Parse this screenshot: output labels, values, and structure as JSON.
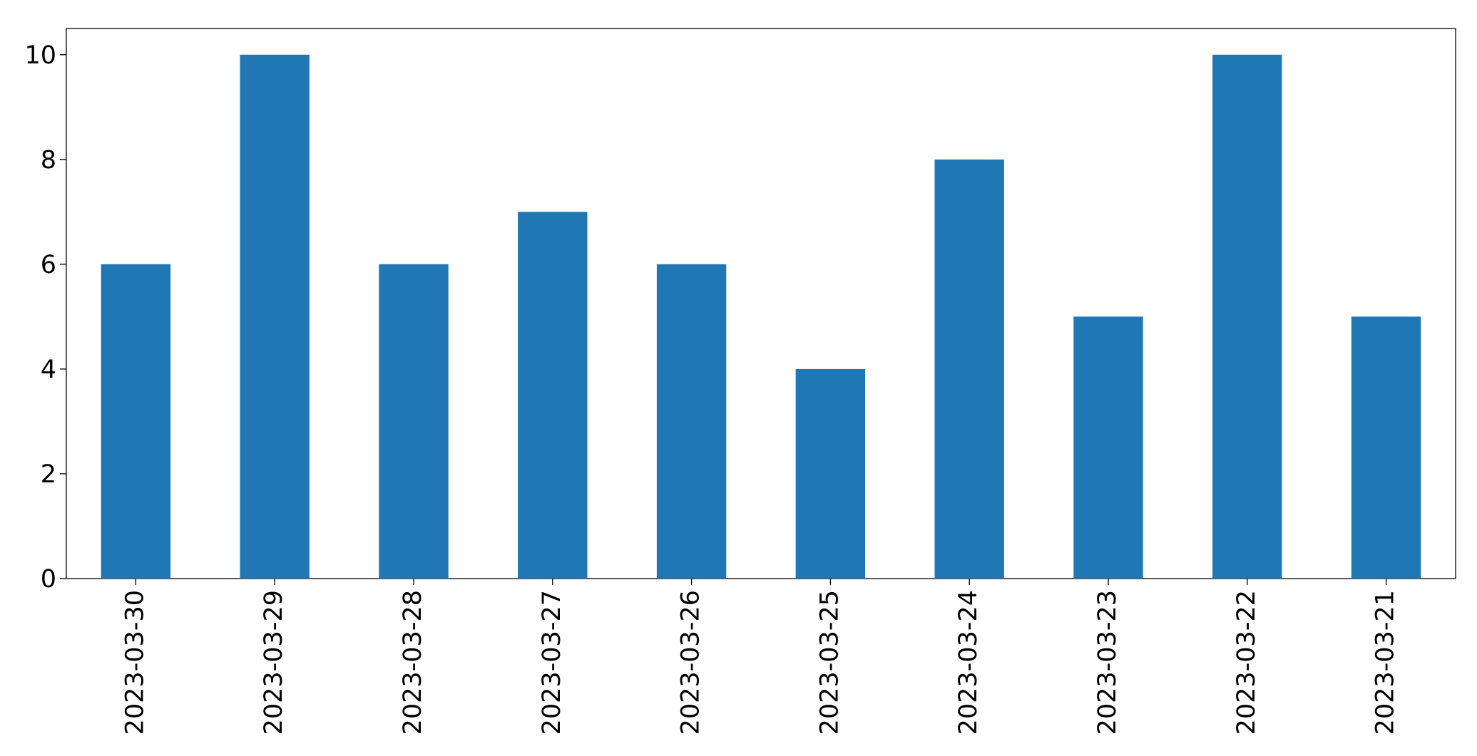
{
  "chart_data": {
    "type": "bar",
    "categories": [
      "2023-03-30",
      "2023-03-29",
      "2023-03-28",
      "2023-03-27",
      "2023-03-26",
      "2023-03-25",
      "2023-03-24",
      "2023-03-23",
      "2023-03-22",
      "2023-03-21"
    ],
    "values": [
      6,
      10,
      6,
      7,
      6,
      4,
      8,
      5,
      10,
      5
    ],
    "color": "#1f77b4",
    "ylim": [
      0,
      10.5
    ],
    "yticks": [
      0,
      2,
      4,
      6,
      8,
      10
    ],
    "grid": false
  }
}
